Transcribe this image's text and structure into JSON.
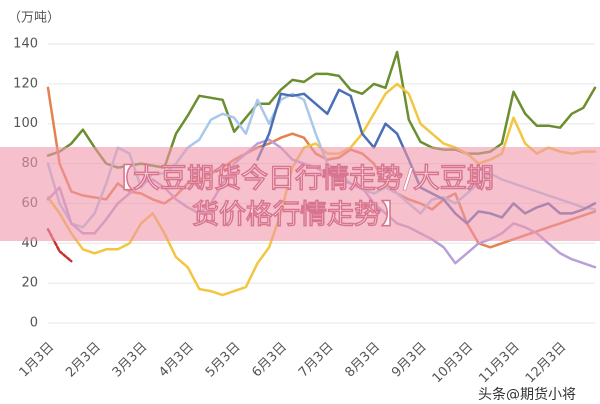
{
  "chart_data": {
    "type": "line",
    "y_label": "（万吨）",
    "categories": [
      "1月3日",
      null,
      null,
      null,
      "2月3日",
      null,
      null,
      null,
      "3月3日",
      null,
      null,
      null,
      "4月3日",
      null,
      null,
      null,
      "5月3日",
      null,
      null,
      null,
      "6月3日",
      null,
      null,
      null,
      "7月3日",
      null,
      null,
      null,
      "8月3日",
      null,
      null,
      null,
      "9月3日",
      null,
      null,
      null,
      "10月3日",
      null,
      null,
      null,
      "11月3日",
      null,
      null,
      null,
      "12月3日",
      null,
      null,
      null
    ],
    "ylim": [
      0,
      140
    ],
    "yticks": [
      0,
      20,
      40,
      60,
      80,
      100,
      120,
      140
    ],
    "grid": true,
    "series": [
      {
        "color": "#6b8e2f",
        "values": [
          84,
          86,
          90,
          97,
          88,
          80,
          78,
          79,
          80,
          79,
          78,
          95,
          104,
          114,
          113,
          112,
          96,
          103,
          110,
          110,
          117,
          122,
          121,
          125,
          125,
          124,
          117,
          115,
          120,
          118,
          136,
          102,
          91,
          88,
          87,
          87,
          85,
          85,
          86,
          90,
          116,
          105,
          99,
          99,
          98,
          105,
          108,
          118
        ]
      },
      {
        "color": "#e4824f",
        "values": [
          118,
          80,
          66,
          64,
          63,
          62,
          70,
          66,
          65,
          62,
          60,
          64,
          70,
          72,
          75,
          78,
          82,
          85,
          88,
          90,
          93,
          95,
          93,
          85,
          82,
          83,
          87,
          85,
          80,
          70,
          65,
          62,
          60,
          57,
          62,
          65,
          50,
          40,
          38,
          40,
          42,
          44,
          46,
          48,
          50,
          52,
          54,
          56
        ]
      },
      {
        "color": "#f3c63f",
        "values": [
          63,
          55,
          45,
          37,
          35,
          37,
          37,
          40,
          50,
          55,
          45,
          33,
          28,
          17,
          16,
          14,
          16,
          18,
          30,
          38,
          55,
          78,
          88,
          90,
          85,
          85,
          88,
          95,
          105,
          115,
          120,
          115,
          100,
          95,
          90,
          88,
          85,
          80,
          82,
          85,
          103,
          90,
          85,
          88,
          86,
          85,
          86,
          86
        ]
      },
      {
        "color": "#a9c8ea",
        "values": [
          80,
          60,
          50,
          48,
          55,
          70,
          88,
          85,
          68,
          75,
          75,
          80,
          88,
          92,
          102,
          105,
          103,
          95,
          112,
          100,
          112,
          115,
          112,
          95,
          80,
          75,
          70,
          67,
          65,
          68,
          65,
          60,
          55,
          62,
          63,
          60,
          65,
          70,
          75,
          72,
          70,
          68,
          66,
          64,
          62,
          60,
          58,
          57
        ]
      },
      {
        "color": "#b9a0d8",
        "values": [
          62,
          68,
          50,
          45,
          45,
          52,
          60,
          65,
          70,
          72,
          68,
          62,
          58,
          55,
          60,
          70,
          80,
          85,
          90,
          92,
          88,
          82,
          80,
          78,
          75,
          72,
          70,
          68,
          60,
          55,
          50,
          48,
          45,
          42,
          38,
          30,
          35,
          40,
          42,
          45,
          50,
          48,
          45,
          40,
          35,
          32,
          30,
          28
        ]
      },
      {
        "color": "#4a6fb5",
        "values": [
          null,
          null,
          null,
          null,
          null,
          null,
          null,
          null,
          null,
          null,
          null,
          null,
          null,
          null,
          null,
          null,
          null,
          null,
          82,
          95,
          115,
          114,
          115,
          110,
          105,
          117,
          114,
          95,
          88,
          100,
          95,
          82,
          68,
          65,
          62,
          55,
          50,
          56,
          55,
          53,
          60,
          55,
          58,
          60,
          55,
          55,
          57,
          60
        ]
      },
      {
        "color": "#c9302c",
        "dashed": true,
        "values": [
          47,
          36,
          31,
          null,
          null,
          null,
          null,
          null,
          null,
          null,
          null,
          null,
          null,
          null,
          null,
          null,
          null,
          null,
          null,
          null,
          null,
          null,
          null,
          null,
          null,
          null,
          null,
          null,
          null,
          null,
          null,
          null,
          null,
          null,
          null,
          null,
          null,
          null,
          null,
          null,
          null,
          null,
          null,
          null,
          null,
          null,
          null,
          null
        ]
      }
    ]
  },
  "overlay": {
    "banner_lines": [
      "【大豆期货今日行情走势/大豆期",
      "货价格行情走势】"
    ],
    "watermark": "头条@期货小将"
  }
}
